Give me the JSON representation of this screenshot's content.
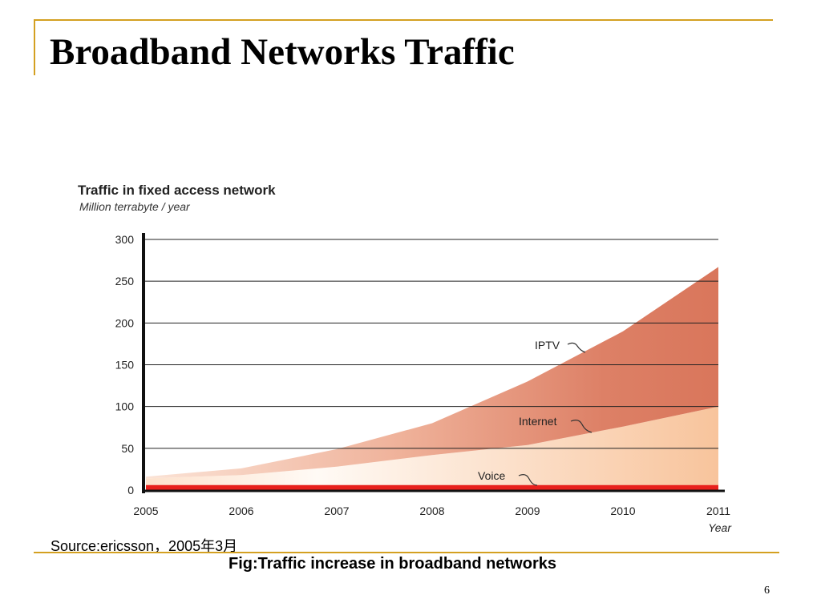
{
  "slide": {
    "title": "Broadband Networks Traffic",
    "source": "Source:ericsson，2005年3月",
    "caption": "Fig:Traffic increase in broadband networks",
    "page_number": "6"
  },
  "colors": {
    "accent": "#d4a021",
    "voice": "#e8201c",
    "internet": "#f9c9a3",
    "iptv": "#dc7d62"
  },
  "chart_data": {
    "type": "area",
    "title": "Traffic in fixed access network",
    "subtitle": "Million terrabyte / year",
    "xlabel": "Year",
    "ylabel": "",
    "x": [
      "2005",
      "2006",
      "2007",
      "2008",
      "2009",
      "2010",
      "2011"
    ],
    "ylim": [
      0,
      300
    ],
    "yticks": [
      "0",
      "50",
      "100",
      "150",
      "200",
      "250",
      "300"
    ],
    "grid": true,
    "stacked": true,
    "series": [
      {
        "name": "Voice",
        "values": [
          6,
          6,
          6,
          6,
          6,
          6,
          6
        ]
      },
      {
        "name": "Internet",
        "values": [
          8,
          12,
          22,
          36,
          48,
          70,
          94
        ]
      },
      {
        "name": "IPTV",
        "values": [
          2,
          8,
          21,
          38,
          76,
          114,
          167
        ]
      }
    ],
    "totals": [
      16,
      26,
      49,
      80,
      130,
      190,
      267
    ]
  }
}
